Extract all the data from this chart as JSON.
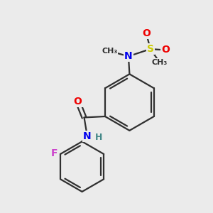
{
  "background_color": "#ebebeb",
  "atom_colors": {
    "C": "#303030",
    "N": "#0000ee",
    "O": "#ee0000",
    "S": "#cccc00",
    "F": "#cc44cc",
    "H": "#448888"
  },
  "bond_color": "#303030",
  "bond_lw": 1.6,
  "fig_width": 3.0,
  "fig_height": 3.0,
  "dpi": 100,
  "xlim": [
    0,
    10
  ],
  "ylim": [
    0,
    10
  ]
}
